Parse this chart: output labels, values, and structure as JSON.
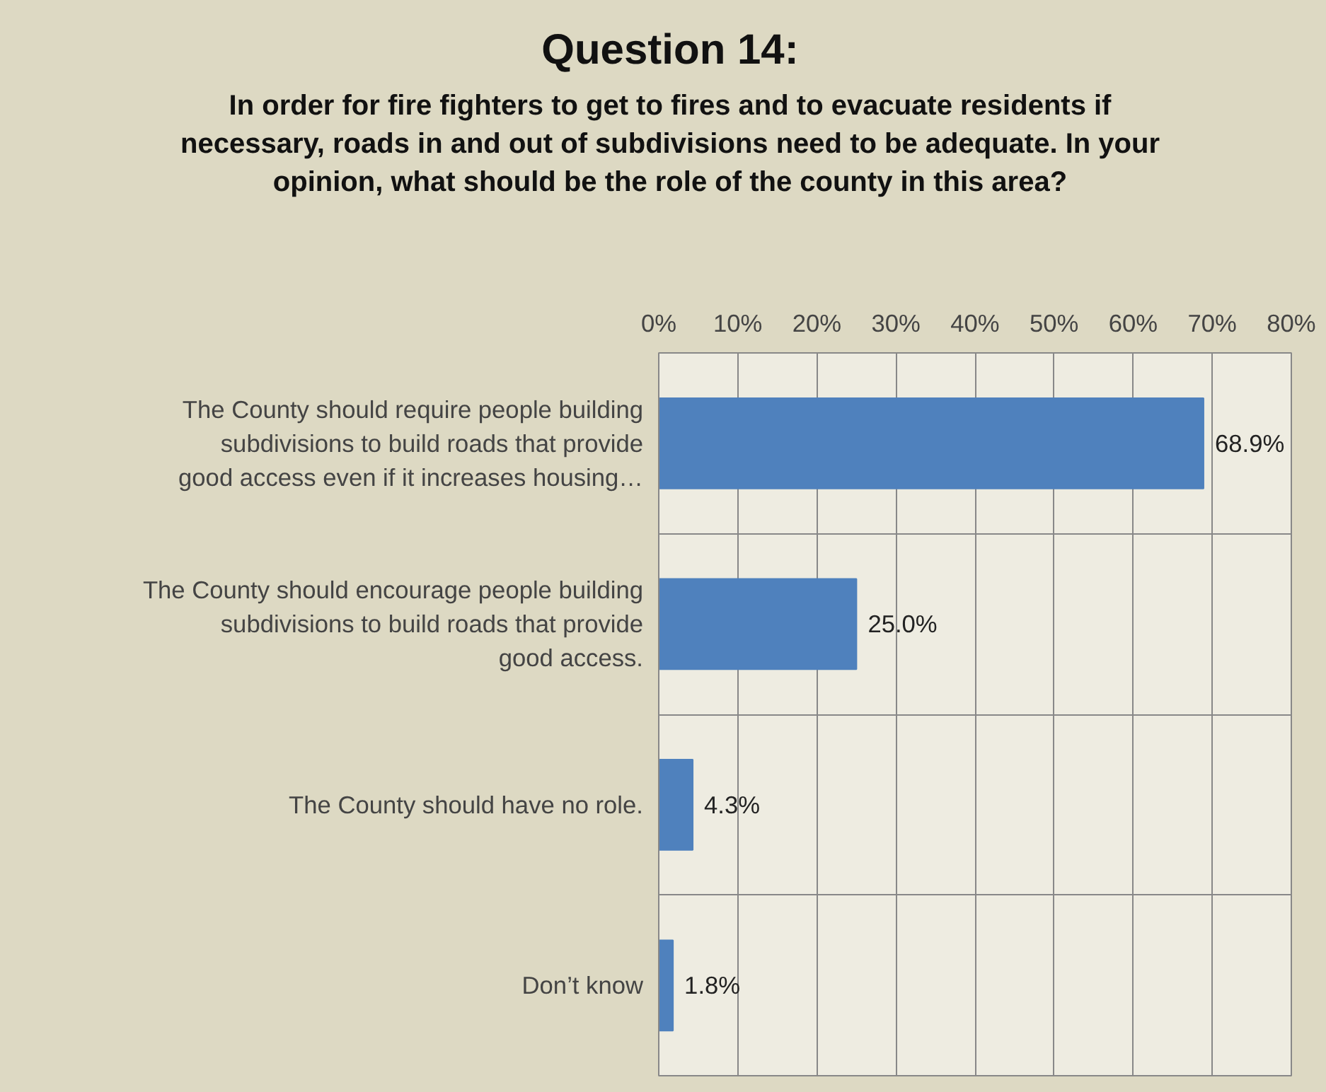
{
  "chart_data": {
    "type": "bar",
    "orientation": "horizontal",
    "title": "Question 14:",
    "subtitle": "In order for fire fighters to get to fires and to evacuate residents if necessary, roads in and out of subdivisions need to be adequate. In your opinion, what should be the role of the county in this area?",
    "categories": [
      "The County should require people building subdivisions to build roads that provide good access even if it increases housing…",
      "The County should encourage people building subdivisions to build roads that provide good access.",
      "The County should have no role.",
      "Don’t know"
    ],
    "values": [
      68.9,
      25.0,
      4.3,
      1.8
    ],
    "value_labels": [
      "68.9%",
      "25.0%",
      "4.3%",
      "1.8%"
    ],
    "color": "#4f81bd",
    "xlim": [
      0,
      80
    ],
    "xticks": [
      {
        "value": 0,
        "label": "0%"
      },
      {
        "value": 10,
        "label": "10%"
      },
      {
        "value": 20,
        "label": "20%"
      },
      {
        "value": 30,
        "label": "30%"
      },
      {
        "value": 40,
        "label": "40%"
      },
      {
        "value": 50,
        "label": "50%"
      },
      {
        "value": 60,
        "label": "60%"
      },
      {
        "value": 70,
        "label": "70%"
      },
      {
        "value": 80,
        "label": "80%"
      }
    ],
    "grid": true
  }
}
